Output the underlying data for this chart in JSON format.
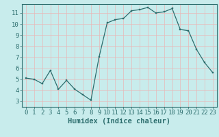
{
  "x": [
    0,
    1,
    2,
    3,
    4,
    5,
    6,
    7,
    8,
    9,
    10,
    11,
    12,
    13,
    14,
    15,
    16,
    17,
    18,
    19,
    20,
    21,
    22,
    23
  ],
  "y": [
    5.1,
    5.0,
    4.6,
    5.8,
    4.1,
    4.9,
    4.1,
    3.6,
    3.1,
    7.0,
    10.1,
    10.4,
    10.5,
    11.2,
    11.3,
    11.5,
    11.0,
    11.1,
    11.4,
    9.5,
    9.4,
    7.7,
    6.5,
    5.6
  ],
  "line_color": "#2d6e6e",
  "marker_color": "#2d6e6e",
  "bg_color": "#c8ecec",
  "grid_color": "#e8b8b8",
  "axis_color": "#2d6e6e",
  "xlabel": "Humidex (Indice chaleur)",
  "xlim": [
    -0.5,
    23.5
  ],
  "ylim": [
    2.5,
    11.8
  ],
  "yticks": [
    3,
    4,
    5,
    6,
    7,
    8,
    9,
    10,
    11
  ],
  "xticks": [
    0,
    1,
    2,
    3,
    4,
    5,
    6,
    7,
    8,
    9,
    10,
    11,
    12,
    13,
    14,
    15,
    16,
    17,
    18,
    19,
    20,
    21,
    22,
    23
  ],
  "tick_font_size": 6.5,
  "label_font_size": 7.5
}
